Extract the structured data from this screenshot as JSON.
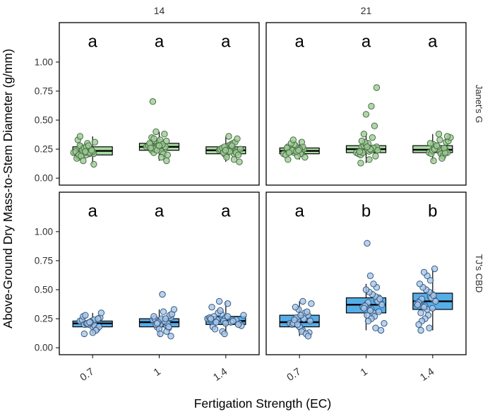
{
  "chart": {
    "x_axis_title": "Fertigation Strength (EC)",
    "y_axis_title": "Above-Ground Dry Mass-to-Stem Diameter (g/mm)"
  },
  "chart_data": {
    "type": "boxplot",
    "title": "",
    "xlabel": "Fertigation Strength (EC)",
    "ylabel": "Above-Ground Dry Mass-to-Stem Diameter (g/mm)",
    "facet_cols": [
      "14",
      "21"
    ],
    "facet_rows": [
      "Janet's G",
      "TJ's CBD"
    ],
    "x_categories": [
      "0.7",
      "1",
      "1.4"
    ],
    "ylim": [
      -0.06,
      1.34
    ],
    "letter_y": 1.18,
    "y_ticks": [
      {
        "v": 1.0,
        "label": "1.00"
      },
      {
        "v": 0.75,
        "label": "0.75"
      },
      {
        "v": 0.5,
        "label": "0.50"
      },
      {
        "v": 0.25,
        "label": "0.25"
      },
      {
        "v": 0.0,
        "label": "0.00"
      }
    ],
    "styles": {
      "panel_border": "#000000",
      "box_stroke": "#000000",
      "text_color": "#303030",
      "row_colors": [
        {
          "box_fill": "#A9DBA2",
          "point_fill": "#9CCC94",
          "point_stroke": "#4A6B46"
        },
        {
          "box_fill": "#56AEE8",
          "point_fill": "#AAC7E8",
          "point_stroke": "#33587F"
        }
      ]
    },
    "facets": [
      {
        "row": "Janet's G",
        "col": "14",
        "groups": [
          {
            "x": "0.7",
            "letter": "a",
            "lo": 0.12,
            "q1": 0.2,
            "median": 0.235,
            "q3": 0.27,
            "hi": 0.36,
            "points": [
              0.22,
              0.18,
              0.25,
              0.21,
              0.23,
              0.27,
              0.2,
              0.24,
              0.19,
              0.26,
              0.23,
              0.21,
              0.28,
              0.22,
              0.25,
              0.17,
              0.24,
              0.3,
              0.23,
              0.2,
              0.26,
              0.22,
              0.31,
              0.19,
              0.27,
              0.24,
              0.33,
              0.15,
              0.28,
              0.12,
              0.36,
              0.23
            ]
          },
          {
            "x": "1",
            "letter": "a",
            "lo": 0.15,
            "q1": 0.24,
            "median": 0.27,
            "q3": 0.3,
            "hi": 0.4,
            "points": [
              0.27,
              0.24,
              0.3,
              0.26,
              0.28,
              0.22,
              0.31,
              0.25,
              0.29,
              0.27,
              0.23,
              0.32,
              0.26,
              0.28,
              0.21,
              0.3,
              0.25,
              0.33,
              0.27,
              0.35,
              0.24,
              0.29,
              0.2,
              0.34,
              0.28,
              0.38,
              0.26,
              0.4,
              0.18,
              0.15,
              0.66
            ]
          },
          {
            "x": "1.4",
            "letter": "a",
            "lo": 0.14,
            "q1": 0.21,
            "median": 0.24,
            "q3": 0.27,
            "hi": 0.36,
            "points": [
              0.24,
              0.21,
              0.26,
              0.23,
              0.25,
              0.2,
              0.27,
              0.22,
              0.24,
              0.28,
              0.21,
              0.25,
              0.23,
              0.29,
              0.22,
              0.26,
              0.24,
              0.3,
              0.2,
              0.27,
              0.23,
              0.31,
              0.25,
              0.18,
              0.28,
              0.34,
              0.22,
              0.36,
              0.16,
              0.14,
              0.24
            ]
          }
        ]
      },
      {
        "row": "Janet's G",
        "col": "21",
        "groups": [
          {
            "x": "0.7",
            "letter": "a",
            "lo": 0.16,
            "q1": 0.21,
            "median": 0.235,
            "q3": 0.26,
            "hi": 0.33,
            "points": [
              0.23,
              0.21,
              0.25,
              0.22,
              0.24,
              0.2,
              0.26,
              0.23,
              0.21,
              0.27,
              0.24,
              0.22,
              0.25,
              0.23,
              0.28,
              0.21,
              0.26,
              0.24,
              0.19,
              0.27,
              0.22,
              0.29,
              0.25,
              0.18,
              0.3,
              0.23,
              0.31,
              0.16,
              0.33,
              0.24
            ]
          },
          {
            "x": "1",
            "letter": "a",
            "lo": 0.13,
            "q1": 0.22,
            "median": 0.25,
            "q3": 0.28,
            "hi": 0.38,
            "points": [
              0.25,
              0.22,
              0.27,
              0.24,
              0.26,
              0.21,
              0.28,
              0.23,
              0.25,
              0.2,
              0.29,
              0.24,
              0.27,
              0.22,
              0.3,
              0.26,
              0.23,
              0.31,
              0.25,
              0.19,
              0.32,
              0.27,
              0.35,
              0.24,
              0.38,
              0.16,
              0.45,
              0.13,
              0.55,
              0.62,
              0.78
            ]
          },
          {
            "x": "1.4",
            "letter": "a",
            "lo": 0.15,
            "q1": 0.22,
            "median": 0.245,
            "q3": 0.28,
            "hi": 0.38,
            "points": [
              0.24,
              0.22,
              0.27,
              0.23,
              0.25,
              0.21,
              0.28,
              0.24,
              0.22,
              0.29,
              0.25,
              0.23,
              0.3,
              0.26,
              0.21,
              0.31,
              0.24,
              0.27,
              0.19,
              0.32,
              0.25,
              0.33,
              0.22,
              0.35,
              0.28,
              0.17,
              0.36,
              0.15,
              0.38,
              0.26
            ]
          }
        ]
      },
      {
        "row": "TJ's CBD",
        "col": "14",
        "groups": [
          {
            "x": "0.7",
            "letter": "a",
            "lo": 0.12,
            "q1": 0.18,
            "median": 0.21,
            "q3": 0.23,
            "hi": 0.3,
            "points": [
              0.21,
              0.19,
              0.23,
              0.2,
              0.22,
              0.17,
              0.24,
              0.21,
              0.18,
              0.25,
              0.2,
              0.22,
              0.19,
              0.26,
              0.21,
              0.23,
              0.16,
              0.27,
              0.2,
              0.24,
              0.18,
              0.28,
              0.22,
              0.15,
              0.3,
              0.21,
              0.13,
              0.25,
              0.12,
              0.22
            ]
          },
          {
            "x": "1",
            "letter": "a",
            "lo": 0.1,
            "q1": 0.18,
            "median": 0.22,
            "q3": 0.25,
            "hi": 0.33,
            "points": [
              0.22,
              0.19,
              0.24,
              0.21,
              0.23,
              0.17,
              0.25,
              0.2,
              0.22,
              0.26,
              0.18,
              0.24,
              0.21,
              0.27,
              0.16,
              0.23,
              0.28,
              0.2,
              0.25,
              0.14,
              0.29,
              0.22,
              0.31,
              0.18,
              0.33,
              0.12,
              0.25,
              0.1,
              0.21,
              0.46
            ]
          },
          {
            "x": "1.4",
            "letter": "a",
            "lo": 0.12,
            "q1": 0.2,
            "median": 0.23,
            "q3": 0.27,
            "hi": 0.4,
            "points": [
              0.23,
              0.21,
              0.26,
              0.22,
              0.24,
              0.19,
              0.27,
              0.23,
              0.2,
              0.28,
              0.24,
              0.22,
              0.29,
              0.25,
              0.18,
              0.3,
              0.23,
              0.26,
              0.16,
              0.32,
              0.21,
              0.35,
              0.24,
              0.14,
              0.38,
              0.27,
              0.4,
              0.12,
              0.25,
              0.22
            ]
          }
        ]
      },
      {
        "row": "TJ's CBD",
        "col": "21",
        "groups": [
          {
            "x": "0.7",
            "letter": "a",
            "lo": 0.1,
            "q1": 0.18,
            "median": 0.22,
            "q3": 0.28,
            "hi": 0.4,
            "points": [
              0.22,
              0.19,
              0.25,
              0.21,
              0.23,
              0.17,
              0.27,
              0.2,
              0.24,
              0.15,
              0.28,
              0.22,
              0.18,
              0.3,
              0.23,
              0.26,
              0.14,
              0.31,
              0.21,
              0.33,
              0.25,
              0.13,
              0.35,
              0.28,
              0.12,
              0.38,
              0.2,
              0.4,
              0.1,
              0.24
            ]
          },
          {
            "x": "1",
            "letter": "b",
            "lo": 0.15,
            "q1": 0.3,
            "median": 0.37,
            "q3": 0.43,
            "hi": 0.55,
            "points": [
              0.37,
              0.33,
              0.41,
              0.35,
              0.39,
              0.3,
              0.43,
              0.36,
              0.32,
              0.44,
              0.38,
              0.28,
              0.46,
              0.4,
              0.34,
              0.48,
              0.27,
              0.42,
              0.5,
              0.25,
              0.52,
              0.37,
              0.23,
              0.55,
              0.31,
              0.21,
              0.62,
              0.17,
              0.15,
              0.9
            ]
          },
          {
            "x": "1.4",
            "letter": "b",
            "lo": 0.15,
            "q1": 0.33,
            "median": 0.4,
            "q3": 0.47,
            "hi": 0.68,
            "points": [
              0.4,
              0.36,
              0.44,
              0.38,
              0.42,
              0.33,
              0.46,
              0.39,
              0.35,
              0.48,
              0.41,
              0.3,
              0.5,
              0.43,
              0.37,
              0.52,
              0.28,
              0.45,
              0.55,
              0.25,
              0.58,
              0.4,
              0.23,
              0.62,
              0.34,
              0.2,
              0.65,
              0.17,
              0.68,
              0.15
            ]
          }
        ]
      }
    ]
  }
}
